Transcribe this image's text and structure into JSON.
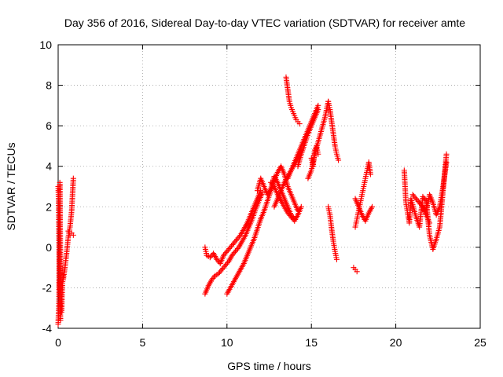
{
  "chart_data": {
    "type": "scatter",
    "title": "Day 356 of 2016, Sidereal Day-to-day VTEC variation (SDTVAR) for receiver amte",
    "xlabel": "GPS time / hours",
    "ylabel": "SDTVAR / TECUs",
    "xlim": [
      0,
      25
    ],
    "ylim": [
      -4,
      10
    ],
    "xticks": [
      0,
      5,
      10,
      15,
      20,
      25
    ],
    "yticks": [
      -4,
      -2,
      0,
      2,
      4,
      6,
      8,
      10
    ],
    "grid": true,
    "marker": "plus",
    "color": "#ff0000",
    "segments": [
      {
        "x": [
          0.0,
          0.05,
          0.1,
          0.15,
          0.2,
          0.25,
          0.3
        ],
        "y": [
          -3.8,
          -2.6,
          3.2,
          -2.0,
          -3.2,
          -1.8,
          -1.4
        ]
      },
      {
        "x": [
          0.0,
          0.02,
          0.04,
          0.06,
          0.08,
          0.1,
          0.12,
          0.14
        ],
        "y": [
          3.0,
          2.5,
          1.2,
          -0.2,
          -1.5,
          -2.5,
          -3.0,
          -3.6
        ]
      },
      {
        "x": [
          0.3,
          0.4,
          0.5,
          0.6,
          0.7,
          0.8,
          0.9
        ],
        "y": [
          -1.6,
          -1.0,
          -0.3,
          0.5,
          1.0,
          1.8,
          3.4
        ]
      },
      {
        "x": [
          0.6,
          0.7,
          0.8,
          0.9
        ],
        "y": [
          0.8,
          0.6,
          0.7,
          0.6
        ]
      },
      {
        "x": [
          8.7,
          8.8,
          9.0,
          9.2,
          9.4,
          9.6,
          9.8,
          10.0,
          10.2,
          10.4,
          10.6,
          10.8,
          11.0,
          11.2,
          11.4,
          11.6,
          11.8,
          12.0
        ],
        "y": [
          0.0,
          -0.4,
          -0.5,
          -0.3,
          -0.6,
          -0.8,
          -0.4,
          -0.2,
          0.0,
          0.2,
          0.4,
          0.6,
          0.9,
          1.2,
          1.6,
          2.0,
          2.4,
          2.8
        ]
      },
      {
        "x": [
          8.7,
          8.9,
          9.1,
          9.3,
          9.5,
          9.7,
          9.9,
          10.1,
          10.3,
          10.5,
          10.7,
          10.9,
          11.1,
          11.3,
          11.5,
          11.7,
          11.9,
          12.1
        ],
        "y": [
          -2.3,
          -1.9,
          -1.6,
          -1.4,
          -1.3,
          -1.1,
          -0.9,
          -0.7,
          -0.4,
          -0.2,
          0.0,
          0.3,
          0.6,
          1.0,
          1.4,
          1.9,
          2.3,
          2.7
        ]
      },
      {
        "x": [
          10.0,
          10.2,
          10.4,
          10.6,
          10.8,
          11.0,
          11.2,
          11.4,
          11.6,
          11.8,
          12.0
        ],
        "y": [
          -2.3,
          -2.0,
          -1.7,
          -1.4,
          -1.1,
          -0.8,
          -0.4,
          0.0,
          0.4,
          0.9,
          1.4
        ]
      },
      {
        "x": [
          11.8,
          12.0,
          12.2,
          12.4,
          12.6,
          12.8,
          13.0,
          13.2,
          13.4,
          13.6,
          13.8,
          14.0
        ],
        "y": [
          2.8,
          3.4,
          3.0,
          2.6,
          2.9,
          3.5,
          3.2,
          2.8,
          2.4,
          2.0,
          1.6,
          1.4
        ]
      },
      {
        "x": [
          12.0,
          12.2,
          12.4,
          12.6,
          12.8,
          13.0,
          13.2,
          13.4,
          13.6,
          13.8,
          14.0,
          14.2
        ],
        "y": [
          1.4,
          1.8,
          2.3,
          2.8,
          3.3,
          3.7,
          4.0,
          3.6,
          3.0,
          2.6,
          2.2,
          1.8
        ]
      },
      {
        "x": [
          12.6,
          12.8,
          13.0,
          13.2,
          13.4,
          13.6,
          13.8,
          14.0,
          14.2,
          14.4
        ],
        "y": [
          3.2,
          3.0,
          2.6,
          2.3,
          2.0,
          1.7,
          1.5,
          1.3,
          1.6,
          2.0
        ]
      },
      {
        "x": [
          12.8,
          13.0,
          13.2,
          13.4,
          13.6,
          13.8,
          14.0,
          14.2,
          14.4
        ],
        "y": [
          2.0,
          2.4,
          2.8,
          3.2,
          3.5,
          3.8,
          4.1,
          4.4,
          4.8
        ]
      },
      {
        "x": [
          13.5,
          13.6,
          13.7,
          13.8,
          13.9,
          14.0,
          14.1,
          14.2,
          14.3
        ],
        "y": [
          8.4,
          7.8,
          7.2,
          6.9,
          6.7,
          6.5,
          6.3,
          6.2,
          6.1
        ]
      },
      {
        "x": [
          13.6,
          13.8,
          14.0,
          14.2,
          14.4,
          14.6,
          14.8,
          15.0,
          15.2,
          15.4
        ],
        "y": [
          3.4,
          3.8,
          4.2,
          4.6,
          5.0,
          5.4,
          5.8,
          6.2,
          6.6,
          7.0
        ]
      },
      {
        "x": [
          14.2,
          14.4,
          14.6,
          14.8,
          15.0,
          15.2,
          15.4
        ],
        "y": [
          4.0,
          4.6,
          5.1,
          5.6,
          6.0,
          6.4,
          6.8
        ]
      },
      {
        "x": [
          14.8,
          15.0,
          15.2,
          15.4,
          15.6,
          15.8,
          16.0
        ],
        "y": [
          3.4,
          3.8,
          4.6,
          5.2,
          5.8,
          6.4,
          7.2
        ]
      },
      {
        "x": [
          15.0,
          15.1,
          15.2,
          15.3,
          15.4
        ],
        "y": [
          4.4,
          4.0,
          4.8,
          5.0,
          4.6
        ]
      },
      {
        "x": [
          16.0,
          16.1,
          16.2,
          16.3,
          16.4,
          16.5,
          16.6
        ],
        "y": [
          7.2,
          6.8,
          6.2,
          5.6,
          5.0,
          4.6,
          4.3
        ]
      },
      {
        "x": [
          16.0,
          16.1,
          16.2,
          16.3,
          16.4,
          16.5
        ],
        "y": [
          2.0,
          1.6,
          0.9,
          0.3,
          -0.2,
          -0.6
        ]
      },
      {
        "x": [
          17.5,
          17.6,
          17.7
        ],
        "y": [
          -1.0,
          -1.1,
          -1.2
        ]
      },
      {
        "x": [
          17.6,
          17.7,
          17.8,
          17.9,
          18.0,
          18.1,
          18.2,
          18.3,
          18.4,
          18.5
        ],
        "y": [
          1.0,
          1.4,
          1.8,
          2.2,
          2.6,
          3.0,
          3.4,
          3.8,
          4.2,
          3.6
        ]
      },
      {
        "x": [
          17.6,
          17.8,
          18.0,
          18.2,
          18.4,
          18.6
        ],
        "y": [
          2.4,
          2.0,
          1.6,
          1.3,
          1.7,
          2.0
        ]
      },
      {
        "x": [
          20.5,
          20.6,
          20.7,
          20.8,
          20.9,
          21.0,
          21.2,
          21.4,
          21.6,
          21.8,
          22.0,
          22.2,
          22.4,
          22.6,
          22.8,
          23.0
        ],
        "y": [
          3.8,
          2.2,
          1.7,
          1.2,
          2.4,
          2.1,
          1.5,
          1.0,
          2.5,
          2.3,
          0.6,
          -0.1,
          0.4,
          1.0,
          2.8,
          4.6
        ]
      },
      {
        "x": [
          21.4,
          21.6,
          21.8,
          22.0,
          22.2,
          22.4,
          22.6,
          22.8,
          23.0
        ],
        "y": [
          2.2,
          2.0,
          1.8,
          2.6,
          2.2,
          1.6,
          2.0,
          3.0,
          4.2
        ]
      },
      {
        "x": [
          21.0,
          21.2,
          21.4,
          21.6,
          21.8,
          22.0
        ],
        "y": [
          2.6,
          2.4,
          2.2,
          2.0,
          1.6,
          1.2
        ]
      }
    ]
  }
}
